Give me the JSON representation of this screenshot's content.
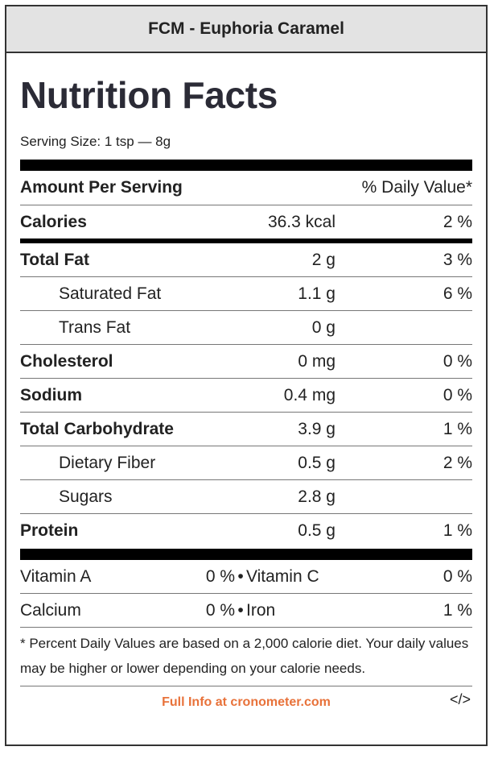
{
  "header": {
    "product_name": "FCM - Euphoria Caramel"
  },
  "label": {
    "title": "Nutrition Facts",
    "serving_size": "Serving Size: 1 tsp — 8g",
    "amount_per_serving": "Amount Per Serving",
    "daily_value_header": "% Daily Value*"
  },
  "calories": {
    "name": "Calories",
    "amount": "36.3 kcal",
    "dv": "2 %"
  },
  "nutrients": [
    {
      "name": "Total Fat",
      "amount": "2 g",
      "dv": "3 %"
    },
    {
      "name": "Saturated Fat",
      "amount": "1.1 g",
      "dv": "6 %"
    },
    {
      "name": "Trans Fat",
      "amount": "0 g",
      "dv": ""
    },
    {
      "name": "Cholesterol",
      "amount": "0 mg",
      "dv": "0 %"
    },
    {
      "name": "Sodium",
      "amount": "0.4 mg",
      "dv": "0 %"
    },
    {
      "name": "Total Carbohydrate",
      "amount": "3.9 g",
      "dv": "1 %"
    },
    {
      "name": "Dietary Fiber",
      "amount": "0.5 g",
      "dv": "2 %"
    },
    {
      "name": "Sugars",
      "amount": "2.8 g",
      "dv": ""
    },
    {
      "name": "Protein",
      "amount": "0.5 g",
      "dv": "1 %"
    }
  ],
  "vitamins": [
    {
      "name1": "Vitamin A",
      "dv1": "0 %",
      "sep": "•",
      "name2": "Vitamin C",
      "dv2": "0 %"
    },
    {
      "name1": "Calcium",
      "dv1": "0 %",
      "sep": "•",
      "name2": "Iron",
      "dv2": "1 %"
    }
  ],
  "footnote": "* Percent Daily Values are based on a 2,000 calorie diet. Your daily values may be higher or lower depending on your calorie needs.",
  "footer": {
    "link_text": "Full Info at cronometer.com",
    "embed_code": "</>",
    "link_color": "#e8723a"
  }
}
